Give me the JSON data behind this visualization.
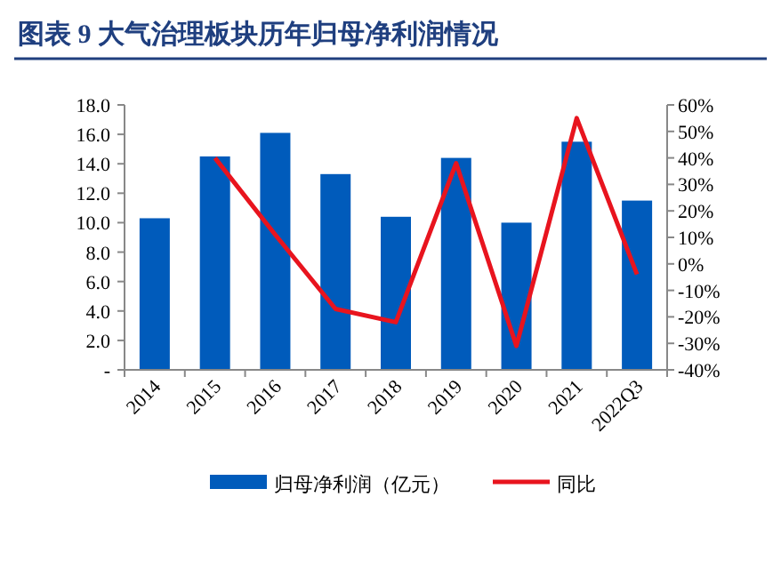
{
  "chart_data": {
    "type": "bar",
    "title": "图表 9   大气治理板块历年归母净利润情况",
    "categories": [
      "2014",
      "2015",
      "2016",
      "2017",
      "2018",
      "2019",
      "2020",
      "2021",
      "2022Q3"
    ],
    "series": [
      {
        "name": "归母净利润（亿元）",
        "color": "#005bbb",
        "values": [
          10.3,
          14.5,
          16.1,
          13.3,
          10.4,
          14.4,
          10.0,
          15.5,
          11.5
        ]
      },
      {
        "name": "同比",
        "type": "line",
        "axis": "y2",
        "color": "#e8141e",
        "values": [
          null,
          40,
          11,
          -17,
          -22,
          38,
          -31,
          55,
          -4
        ]
      }
    ],
    "ylim": [
      0,
      18
    ],
    "yticks": [
      {
        "value": 0,
        "label": "-"
      },
      {
        "value": 2,
        "label": "2.0"
      },
      {
        "value": 4,
        "label": "4.0"
      },
      {
        "value": 6,
        "label": "6.0"
      },
      {
        "value": 8,
        "label": "8.0"
      },
      {
        "value": 10,
        "label": "10.0"
      },
      {
        "value": 12,
        "label": "12.0"
      },
      {
        "value": 14,
        "label": "14.0"
      },
      {
        "value": 16,
        "label": "16.0"
      },
      {
        "value": 18,
        "label": "18.0"
      }
    ],
    "y2lim": [
      -40,
      60
    ],
    "y2ticks": [
      {
        "value": -40,
        "label": "-40%"
      },
      {
        "value": -30,
        "label": "-30%"
      },
      {
        "value": -20,
        "label": "-20%"
      },
      {
        "value": -10,
        "label": "-10%"
      },
      {
        "value": 0,
        "label": "0%"
      },
      {
        "value": 10,
        "label": "10%"
      },
      {
        "value": 20,
        "label": "20%"
      },
      {
        "value": 30,
        "label": "30%"
      },
      {
        "value": 40,
        "label": "40%"
      },
      {
        "value": 50,
        "label": "50%"
      },
      {
        "value": 60,
        "label": "60%"
      }
    ],
    "legend": "bottom",
    "grid": false
  }
}
